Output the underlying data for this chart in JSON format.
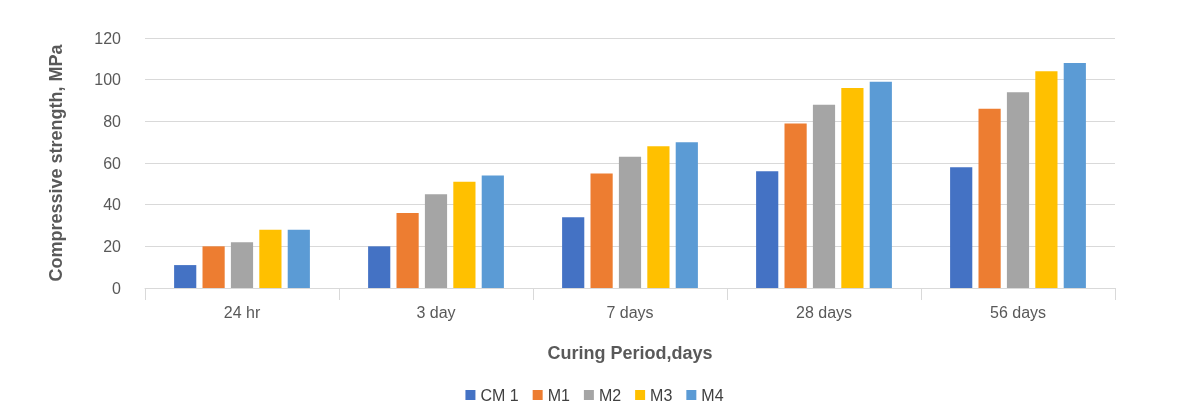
{
  "chart_data": {
    "type": "bar",
    "xlabel": "Curing Period,days",
    "ylabel": "Compressive strength, MPa",
    "categories": [
      "24 hr",
      "3 day",
      "7 days",
      "28 days",
      "56 days"
    ],
    "series": [
      {
        "name": "CM 1",
        "color": "#4472c4",
        "values": [
          11,
          20,
          34,
          56,
          58
        ]
      },
      {
        "name": "M1",
        "color": "#ed7d31",
        "values": [
          20,
          36,
          55,
          79,
          86
        ]
      },
      {
        "name": "M2",
        "color": "#a5a5a5",
        "values": [
          22,
          45,
          63,
          88,
          94
        ]
      },
      {
        "name": "M3",
        "color": "#ffc000",
        "values": [
          28,
          51,
          68,
          96,
          104
        ]
      },
      {
        "name": "M4",
        "color": "#5b9bd5",
        "values": [
          28,
          54,
          70,
          99,
          108
        ]
      }
    ],
    "ylim": [
      0,
      120
    ],
    "yticks": [
      0,
      20,
      40,
      60,
      80,
      100,
      120
    ],
    "grid": "y",
    "legend": "bottom"
  }
}
